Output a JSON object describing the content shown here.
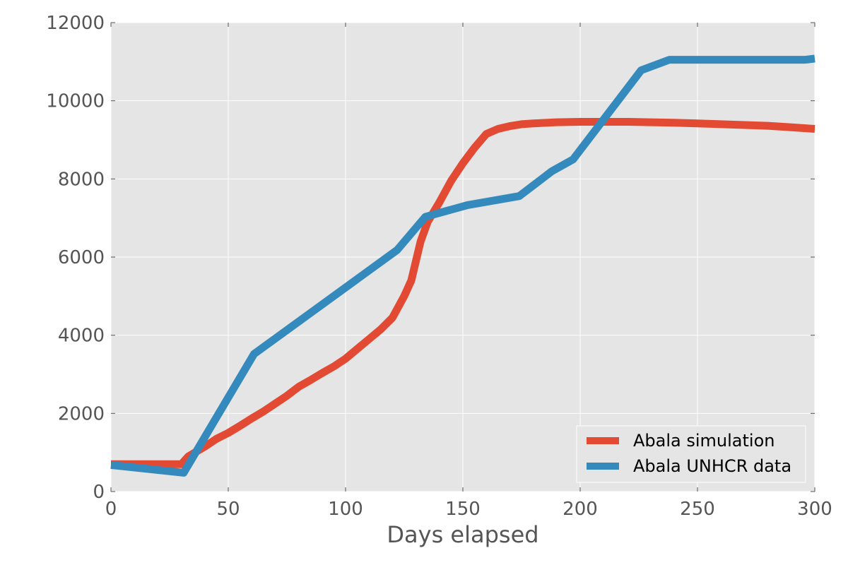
{
  "chart_data": {
    "type": "line",
    "title": "",
    "xlabel": "Days elapsed",
    "ylabel": "",
    "xlim": [
      0,
      300
    ],
    "ylim": [
      0,
      12000
    ],
    "xticks": [
      "0",
      "50",
      "100",
      "150",
      "200",
      "250",
      "300"
    ],
    "yticks": [
      "0",
      "2000",
      "4000",
      "6000",
      "8000",
      "10000",
      "12000"
    ],
    "grid": true,
    "legend_position": "lower-right",
    "series": [
      {
        "name": "Abala simulation",
        "color": "#e24a33",
        "x": [
          0,
          10,
          20,
          30,
          33,
          40,
          45,
          50,
          55,
          60,
          65,
          70,
          75,
          80,
          85,
          90,
          95,
          100,
          105,
          110,
          115,
          120,
          125,
          128,
          130,
          132,
          135,
          140,
          145,
          150,
          155,
          160,
          165,
          170,
          175,
          180,
          190,
          200,
          210,
          220,
          230,
          240,
          250,
          260,
          270,
          280,
          290,
          300
        ],
        "y": [
          700,
          700,
          700,
          700,
          900,
          1150,
          1350,
          1500,
          1680,
          1870,
          2050,
          2250,
          2450,
          2680,
          2850,
          3030,
          3200,
          3400,
          3650,
          3900,
          4150,
          4450,
          5000,
          5400,
          5900,
          6400,
          6900,
          7400,
          7950,
          8400,
          8800,
          9150,
          9280,
          9350,
          9400,
          9420,
          9450,
          9460,
          9460,
          9460,
          9450,
          9440,
          9420,
          9400,
          9380,
          9360,
          9320,
          9280
        ]
      },
      {
        "name": "Abala UNHCR data",
        "color": "#348abd",
        "x": [
          0,
          31,
          61,
          122,
          134,
          152,
          174,
          188,
          197,
          226,
          238,
          250,
          296,
          300
        ],
        "y": [
          680,
          480,
          3520,
          6180,
          7030,
          7330,
          7560,
          8200,
          8500,
          10780,
          11050,
          11050,
          11050,
          11080
        ]
      }
    ]
  }
}
